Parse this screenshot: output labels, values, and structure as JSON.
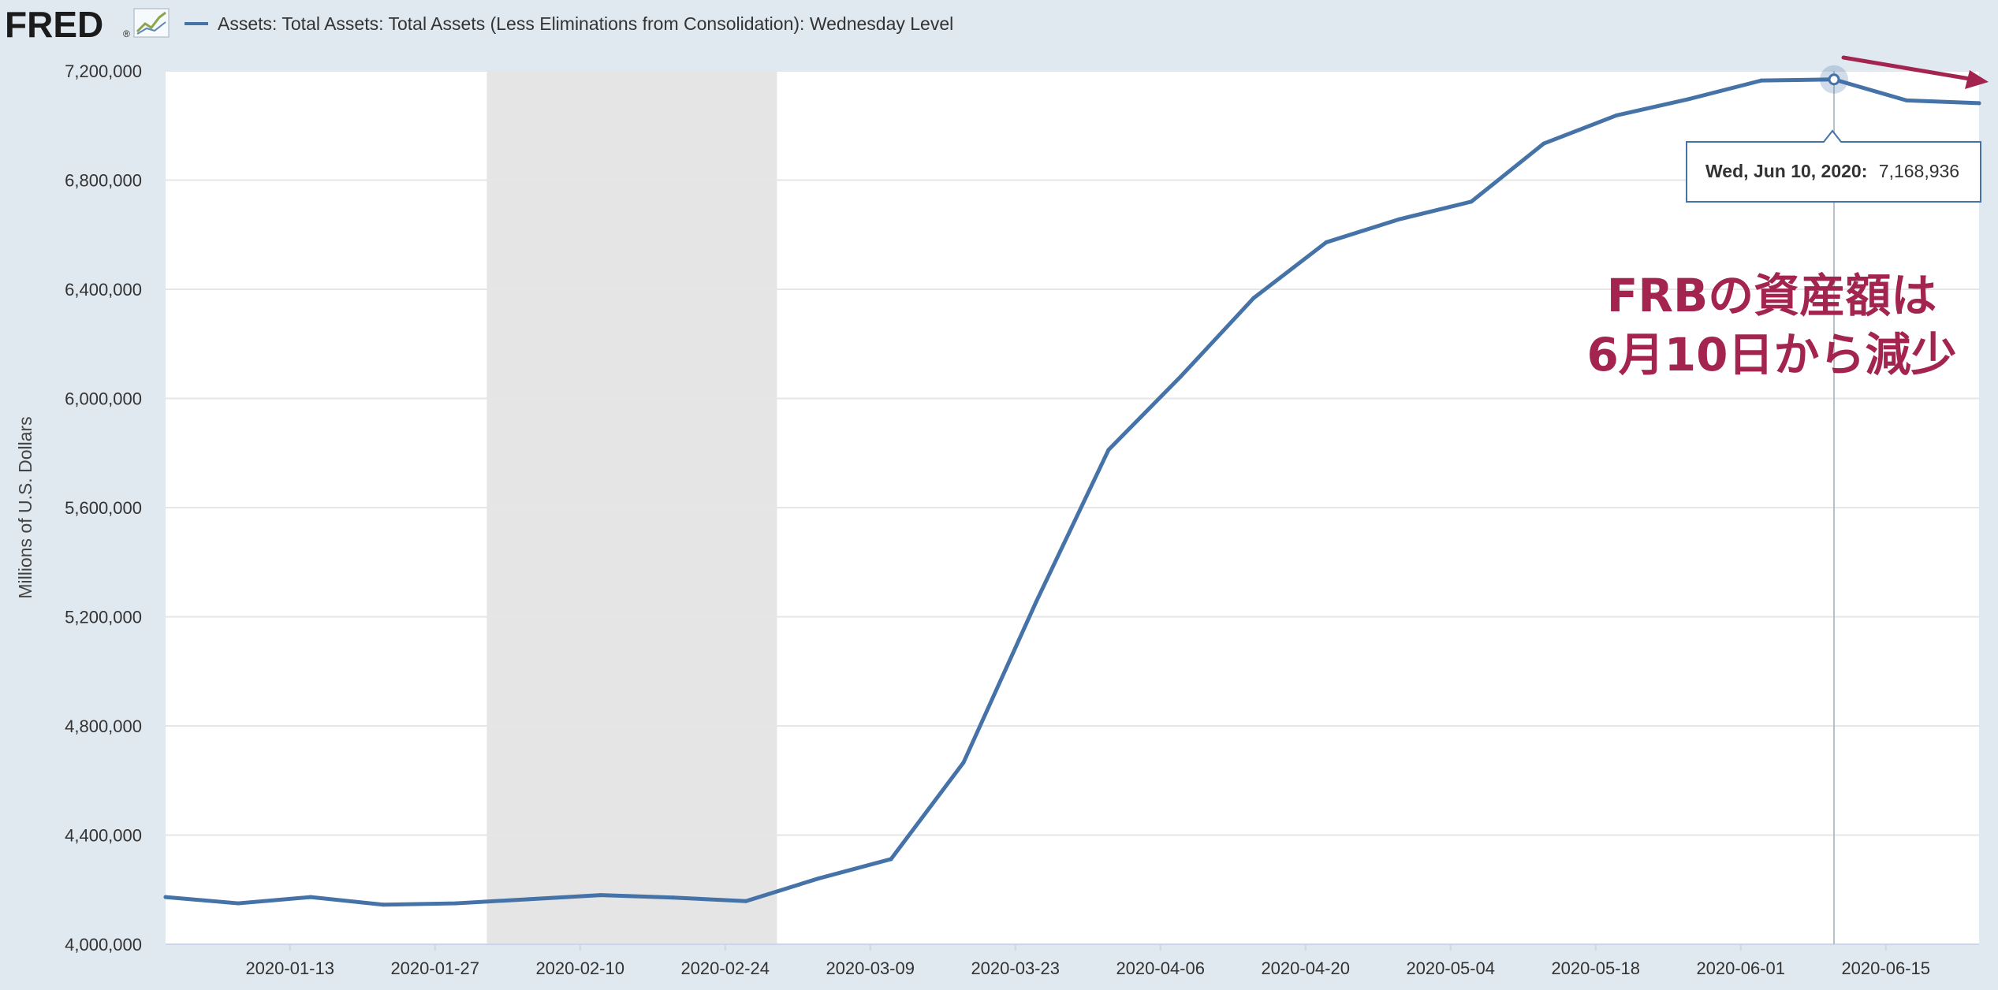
{
  "header": {
    "logo_text": "FRED",
    "logo_mark": "®",
    "logo_icon": "mini-line-chart-icon",
    "series_title": "Assets: Total Assets: Total Assets (Less Eliminations from Consolidation): Wednesday Level"
  },
  "tooltip": {
    "date": "Wed, Jun 10, 2020:",
    "value": "7,168,936"
  },
  "annotation": {
    "line1": "FRBの資産額は",
    "line2": "6月10日から減少"
  },
  "colors": {
    "background": "#e1e9f0",
    "plot": "#ffffff",
    "line": "#4572a7",
    "recession": "#e5e5e5",
    "annotation": "#a3244f",
    "grid": "#e6e6e6"
  },
  "chart_data": {
    "type": "line",
    "title": "Assets: Total Assets: Total Assets (Less Eliminations from Consolidation): Wednesday Level",
    "ylabel": "Millions of U.S. Dollars",
    "xlabel": "",
    "xlim": [
      "2020-01-01",
      "2020-06-24"
    ],
    "ylim": [
      4000000,
      7200000
    ],
    "y_ticks": [
      4000000,
      4400000,
      4800000,
      5200000,
      5600000,
      6000000,
      6400000,
      6800000,
      7200000
    ],
    "y_tick_labels": [
      "4,000,000",
      "4,400,000",
      "4,800,000",
      "5,200,000",
      "5,600,000",
      "6,000,000",
      "6,400,000",
      "6,800,000",
      "7,200,000"
    ],
    "x_ticks": [
      "2020-01-13",
      "2020-01-27",
      "2020-02-10",
      "2020-02-24",
      "2020-03-09",
      "2020-03-23",
      "2020-04-06",
      "2020-04-20",
      "2020-05-04",
      "2020-05-18",
      "2020-06-01",
      "2020-06-15"
    ],
    "grid": true,
    "legend": "top-left",
    "recession_band": [
      "2020-02-01",
      "2020-02-29"
    ],
    "highlight": {
      "x": "2020-06-10",
      "y": 7168936
    },
    "series": [
      {
        "name": "Assets: Total Assets: Total Assets (Less Eliminations from Consolidation): Wednesday Level",
        "points": [
          [
            "2020-01-01",
            4173000
          ],
          [
            "2020-01-08",
            4150000
          ],
          [
            "2020-01-15",
            4173000
          ],
          [
            "2020-01-22",
            4145000
          ],
          [
            "2020-01-29",
            4150000
          ],
          [
            "2020-02-05",
            4165000
          ],
          [
            "2020-02-12",
            4180000
          ],
          [
            "2020-02-19",
            4171000
          ],
          [
            "2020-02-26",
            4158000
          ],
          [
            "2020-03-04",
            4241000
          ],
          [
            "2020-03-11",
            4312000
          ],
          [
            "2020-03-18",
            4666000
          ],
          [
            "2020-03-25",
            5254000
          ],
          [
            "2020-04-01",
            5812000
          ],
          [
            "2020-04-08",
            6082000
          ],
          [
            "2020-04-15",
            6368000
          ],
          [
            "2020-04-22",
            6572000
          ],
          [
            "2020-04-29",
            6656000
          ],
          [
            "2020-05-06",
            6721000
          ],
          [
            "2020-05-13",
            6934000
          ],
          [
            "2020-05-20",
            7037000
          ],
          [
            "2020-05-27",
            7097000
          ],
          [
            "2020-06-03",
            7165000
          ],
          [
            "2020-06-10",
            7168936
          ],
          [
            "2020-06-17",
            7092000
          ],
          [
            "2020-06-24",
            7082000
          ]
        ]
      }
    ]
  }
}
